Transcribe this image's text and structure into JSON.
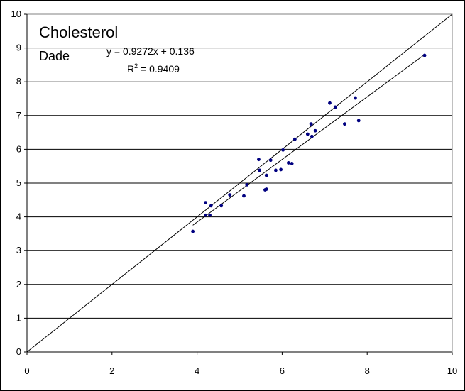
{
  "chart_data": {
    "type": "scatter",
    "title": "Cholesterol",
    "subtitle": "Dade",
    "xlabel": "",
    "ylabel": "",
    "xlim": [
      0,
      10
    ],
    "ylim": [
      0,
      10
    ],
    "x_ticks": [
      "0",
      "2",
      "4",
      "6",
      "8",
      "10"
    ],
    "y_ticks": [
      "0",
      "1",
      "2",
      "3",
      "4",
      "5",
      "6",
      "7",
      "8",
      "9",
      "10"
    ],
    "grid": "horizontal",
    "legend": "none",
    "colors": {
      "points": "#000080",
      "lines": "#000000",
      "grid": "#000000"
    },
    "annotations": {
      "equation": "y = 0.9272x + 0.136",
      "r2_label": "R",
      "r2_sup": "2",
      "r2_value": " = 0.9409"
    },
    "identity_line": {
      "x": [
        0,
        10
      ],
      "y": [
        0,
        10
      ]
    },
    "trendline": {
      "slope": 0.9272,
      "intercept": 0.136,
      "x_range": [
        3.9,
        9.35
      ]
    },
    "series": [
      {
        "points": [
          {
            "x": 3.9,
            "y": 3.57
          },
          {
            "x": 4.2,
            "y": 4.42
          },
          {
            "x": 4.2,
            "y": 4.05
          },
          {
            "x": 4.3,
            "y": 4.05
          },
          {
            "x": 4.33,
            "y": 4.33
          },
          {
            "x": 4.57,
            "y": 4.33
          },
          {
            "x": 4.77,
            "y": 4.65
          },
          {
            "x": 5.1,
            "y": 4.62
          },
          {
            "x": 5.17,
            "y": 4.95
          },
          {
            "x": 5.45,
            "y": 5.7
          },
          {
            "x": 5.47,
            "y": 5.38
          },
          {
            "x": 5.6,
            "y": 4.8
          },
          {
            "x": 5.63,
            "y": 4.82
          },
          {
            "x": 5.63,
            "y": 5.23
          },
          {
            "x": 5.73,
            "y": 5.68
          },
          {
            "x": 5.85,
            "y": 5.38
          },
          {
            "x": 5.97,
            "y": 5.4
          },
          {
            "x": 6.02,
            "y": 5.98
          },
          {
            "x": 6.15,
            "y": 5.6
          },
          {
            "x": 6.23,
            "y": 5.58
          },
          {
            "x": 6.3,
            "y": 6.3
          },
          {
            "x": 6.6,
            "y": 6.45
          },
          {
            "x": 6.68,
            "y": 6.75
          },
          {
            "x": 6.7,
            "y": 6.38
          },
          {
            "x": 6.78,
            "y": 6.55
          },
          {
            "x": 7.12,
            "y": 7.37
          },
          {
            "x": 7.25,
            "y": 7.25
          },
          {
            "x": 7.47,
            "y": 6.75
          },
          {
            "x": 7.72,
            "y": 7.52
          },
          {
            "x": 7.8,
            "y": 6.85
          },
          {
            "x": 9.35,
            "y": 8.78
          }
        ]
      }
    ]
  }
}
